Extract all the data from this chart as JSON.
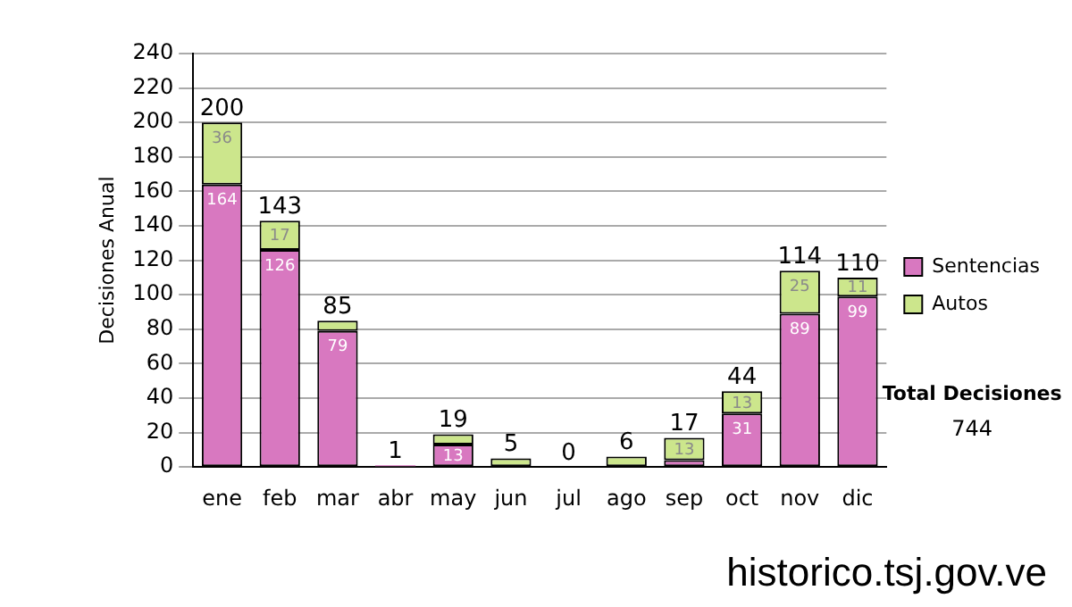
{
  "chart_data": {
    "type": "bar",
    "stacked": true,
    "ylabel": "Decisiones Anual",
    "categories": [
      "ene",
      "feb",
      "mar",
      "abr",
      "may",
      "jun",
      "jul",
      "ago",
      "sep",
      "oct",
      "nov",
      "dic"
    ],
    "series": [
      {
        "name": "Sentencias",
        "color": "#d878c0",
        "values": [
          164,
          126,
          79,
          1,
          13,
          0,
          0,
          0,
          4,
          31,
          89,
          99
        ],
        "value_labels": [
          "164",
          "126",
          "79",
          null,
          "13",
          null,
          null,
          null,
          null,
          "31",
          "89",
          "99"
        ]
      },
      {
        "name": "Autos",
        "color": "#cce68c",
        "values": [
          36,
          17,
          6,
          0,
          6,
          5,
          0,
          6,
          13,
          13,
          25,
          11
        ],
        "value_labels": [
          "36",
          "17",
          null,
          null,
          null,
          null,
          null,
          null,
          "13",
          "13",
          "25",
          "11"
        ]
      }
    ],
    "totals": [
      "200",
      "143",
      "85",
      "1",
      "19",
      "5",
      "0",
      "6",
      "17",
      "44",
      "114",
      "110"
    ],
    "ylim": [
      0,
      240
    ],
    "yticks": [
      0,
      20,
      40,
      60,
      80,
      100,
      120,
      140,
      160,
      180,
      200,
      220,
      240
    ],
    "grid": "y",
    "legend": "right",
    "annotations": [
      "Total Decisiones",
      "744",
      "historico.tsj.gov.ve"
    ]
  }
}
